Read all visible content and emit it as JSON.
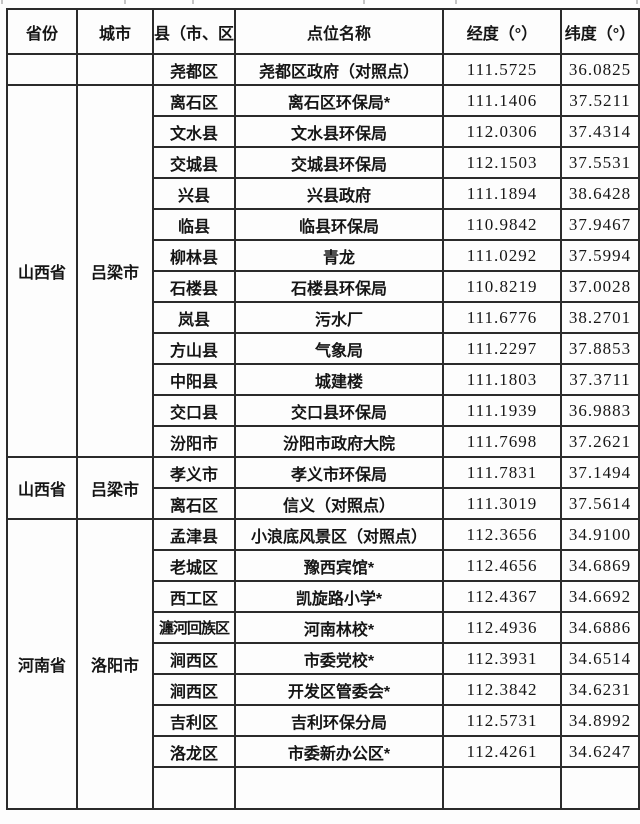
{
  "table": {
    "columns": [
      "省份",
      "城市",
      "县（市、区）",
      "点位名称",
      "经度（°）",
      "纬度（°）"
    ],
    "groups": [
      {
        "province": "",
        "city": "",
        "label_valign": "middle",
        "rows": [
          {
            "county": "尧都区",
            "site": "尧都区政府（对照点）",
            "longitude": "111.5725",
            "latitude": "36.0825"
          }
        ]
      },
      {
        "province": "山西省",
        "city": "吕梁市",
        "label_valign": "middle",
        "rows": [
          {
            "county": "离石区",
            "site": "离石区环保局*",
            "longitude": "111.1406",
            "latitude": "37.5211"
          },
          {
            "county": "文水县",
            "site": "文水县环保局",
            "longitude": "112.0306",
            "latitude": "37.4314"
          },
          {
            "county": "交城县",
            "site": "交城县环保局",
            "longitude": "112.1503",
            "latitude": "37.5531"
          },
          {
            "county": "兴县",
            "site": "兴县政府",
            "longitude": "111.1894",
            "latitude": "38.6428"
          },
          {
            "county": "临县",
            "site": "临县环保局",
            "longitude": "110.9842",
            "latitude": "37.9467"
          },
          {
            "county": "柳林县",
            "site": "青龙",
            "longitude": "111.0292",
            "latitude": "37.5994"
          },
          {
            "county": "石楼县",
            "site": "石楼县环保局",
            "longitude": "110.8219",
            "latitude": "37.0028"
          },
          {
            "county": "岚县",
            "site": "污水厂",
            "longitude": "111.6776",
            "latitude": "38.2701"
          },
          {
            "county": "方山县",
            "site": "气象局",
            "longitude": "111.2297",
            "latitude": "37.8853"
          },
          {
            "county": "中阳县",
            "site": "城建楼",
            "longitude": "111.1803",
            "latitude": "37.3711"
          },
          {
            "county": "交口县",
            "site": "交口县环保局",
            "longitude": "111.1939",
            "latitude": "36.9883"
          },
          {
            "county": "汾阳市",
            "site": "汾阳市政府大院",
            "longitude": "111.7698",
            "latitude": "37.2621"
          }
        ]
      },
      {
        "province": "山西省",
        "city": "吕梁市",
        "label_valign": "middle",
        "rows": [
          {
            "county": "孝义市",
            "site": "孝义市环保局",
            "longitude": "111.7831",
            "latitude": "37.1494"
          },
          {
            "county": "离石区",
            "site": "信义（对照点）",
            "longitude": "111.3019",
            "latitude": "37.5614"
          }
        ]
      },
      {
        "province": "河南省",
        "city": "洛阳市",
        "label_valign": "bottom",
        "partial_bottom_row": true,
        "rows": [
          {
            "county": "孟津县",
            "site": "小浪底风景区（对照点）",
            "longitude": "112.3656",
            "latitude": "34.9100"
          },
          {
            "county": "老城区",
            "site": "豫西宾馆*",
            "longitude": "112.4656",
            "latitude": "34.6869"
          },
          {
            "county": "西工区",
            "site": "凯旋路小学*",
            "longitude": "112.4367",
            "latitude": "34.6692"
          },
          {
            "county": "瀍河回族区",
            "site": "河南林校*",
            "longitude": "112.4936",
            "latitude": "34.6886"
          },
          {
            "county": "涧西区",
            "site": "市委党校*",
            "longitude": "112.3931",
            "latitude": "34.6514"
          },
          {
            "county": "涧西区",
            "site": "开发区管委会*",
            "longitude": "112.3842",
            "latitude": "34.6231"
          },
          {
            "county": "吉利区",
            "site": "吉利环保分局",
            "longitude": "112.5731",
            "latitude": "34.8992"
          },
          {
            "county": "洛龙区",
            "site": "市委新办公区*",
            "longitude": "112.4261",
            "latitude": "34.6247"
          }
        ]
      }
    ]
  }
}
